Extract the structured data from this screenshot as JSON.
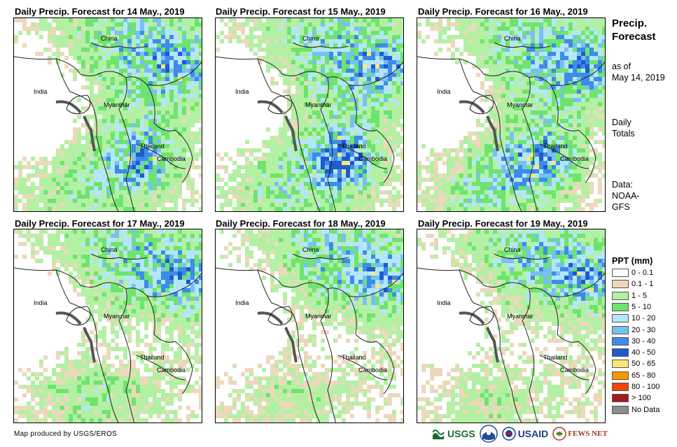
{
  "panels": [
    {
      "title": "Daily Precip. Forecast for 14 May., 2019",
      "labels": {
        "china": "China",
        "india": "India",
        "myanmar": "Myanmar",
        "thailand": "Thailand",
        "cambodia": "Cambodia"
      }
    },
    {
      "title": "Daily Precip. Forecast for 15 May., 2019",
      "labels": {
        "china": "China",
        "india": "India",
        "myanmar": "Myanmar",
        "thailand": "Thailand",
        "cambodia": "Cambodia"
      }
    },
    {
      "title": "Daily Precip. Forecast for 16 May., 2019",
      "labels": {
        "china": "China",
        "india": "India",
        "myanmar": "Myanmar",
        "thailand": "Thailand",
        "cambodia": "Cambodia"
      }
    },
    {
      "title": "Daily Precip. Forecast for 17 May., 2019",
      "labels": {
        "china": "China",
        "india": "India",
        "myanmar": "Myanmar",
        "thailand": "Thailand",
        "cambodia": "Cambodia"
      }
    },
    {
      "title": "Daily Precip. Forecast for 18 May., 2019",
      "labels": {
        "china": "China",
        "india": "India",
        "myanmar": "Myanmar",
        "thailand": "Thailand",
        "cambodia": "Cambodia"
      }
    },
    {
      "title": "Daily Precip. Forecast for 19 May., 2019",
      "labels": {
        "china": "China",
        "india": "India",
        "myanmar": "Myanmar",
        "thailand": "Thailand",
        "cambodia": "Cambodia"
      }
    }
  ],
  "side": {
    "title_line1": "Precip.",
    "title_line2": "Forecast",
    "asof_line1": "as of",
    "asof_line2": "May 14, 2019",
    "totals_line1": "Daily",
    "totals_line2": "Totals",
    "data_line1": "Data:",
    "data_line2": "NOAA-",
    "data_line3": "GFS"
  },
  "legend": {
    "title": "PPT (mm)",
    "items": [
      {
        "label": "0 - 0.1",
        "color": "#ffffff"
      },
      {
        "label": "0.1 - 1",
        "color": "#ecd9bb"
      },
      {
        "label": "1 - 5",
        "color": "#b4f0a4"
      },
      {
        "label": "5 - 10",
        "color": "#6ee46e"
      },
      {
        "label": "10 - 20",
        "color": "#b4e6fa"
      },
      {
        "label": "20 - 30",
        "color": "#78c0f0"
      },
      {
        "label": "30 - 40",
        "color": "#3c8ce8"
      },
      {
        "label": "40 - 50",
        "color": "#1e5ad2"
      },
      {
        "label": "50 - 65",
        "color": "#fae678"
      },
      {
        "label": "65 - 80",
        "color": "#fa9600"
      },
      {
        "label": "80 - 100",
        "color": "#f04600"
      },
      {
        "label": "> 100",
        "color": "#a01e1e"
      },
      {
        "label": "No Data",
        "color": "#8c8c8c"
      }
    ]
  },
  "footer": {
    "credit": "Map produced by USGS/EROS"
  },
  "logos": {
    "usgs": "USGS",
    "usaid": "USAID",
    "fewsnet": "FEWS NET"
  }
}
